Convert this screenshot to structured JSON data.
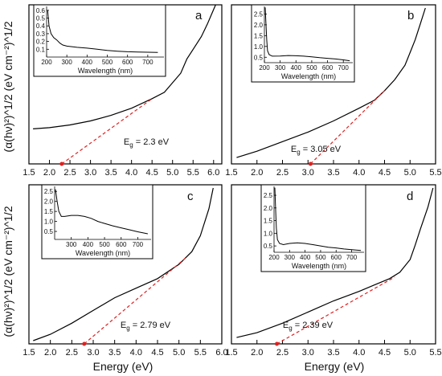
{
  "figure": {
    "y_axis_title_top": "(α(hν)²)^1/2 (eV cm⁻²)^1/2",
    "y_axis_title_bottom": "(α(hν)²)^1/2 (eV cm⁻²)^1/2",
    "x_axis_title_left": "Energy (eV)",
    "x_axis_title_right": "Energy (eV)",
    "colors": {
      "curve": "#000000",
      "fit_line": "#e02020",
      "axes": "#000000"
    }
  },
  "chart_data": [
    {
      "panel": "a",
      "type": "line",
      "xlim": [
        1.5,
        6.2
      ],
      "xticks": [
        1.5,
        2.0,
        2.5,
        3.0,
        3.5,
        4.0,
        4.5,
        5.0,
        5.5,
        6.0
      ],
      "xtick_labels": [
        "1.5",
        "2.0",
        "2.5",
        "3.0",
        "3.5",
        "4.0",
        "4.5",
        "5.0",
        "5.5",
        "6.0"
      ],
      "ylim": [
        0,
        100
      ],
      "series": [
        {
          "x": [
            1.6,
            2.0,
            2.5,
            3.0,
            3.5,
            4.0,
            4.5,
            4.8,
            5.0,
            5.2,
            5.35,
            5.5,
            5.7,
            5.85,
            5.95,
            6.05
          ],
          "y": [
            22,
            22.8,
            24.5,
            27,
            30.5,
            35,
            41,
            45,
            51,
            57,
            66,
            72,
            80,
            88,
            94,
            100
          ]
        }
      ],
      "fit_line": {
        "x": [
          2.3,
          4.5
        ],
        "y": [
          0,
          41
        ]
      },
      "annotation": {
        "base": "E",
        "subscript": "g",
        "text": " = 2.3 eV"
      },
      "inset": {
        "xlabel": "Wavelength (nm)",
        "xlim": [
          200,
          780
        ],
        "xticks": [
          200,
          300,
          400,
          500,
          600,
          700
        ],
        "xtick_labels": [
          "200",
          "300",
          "400",
          "500",
          "600",
          "700"
        ],
        "ylim": [
          0.0,
          0.65
        ],
        "yticks": [
          0.1,
          0.2,
          0.3,
          0.4,
          0.5,
          0.6
        ],
        "ytick_labels": [
          "0.1",
          "0.2",
          "0.3",
          "0.4",
          "0.5",
          "0.6"
        ],
        "x": [
          205,
          212,
          222,
          235,
          250,
          265,
          280,
          300,
          350,
          400,
          450,
          500,
          550,
          600,
          650,
          700,
          750
        ],
        "y": [
          0.6,
          0.4,
          0.3,
          0.25,
          0.22,
          0.18,
          0.155,
          0.14,
          0.125,
          0.115,
          0.1,
          0.085,
          0.075,
          0.068,
          0.064,
          0.062,
          0.06
        ]
      }
    },
    {
      "panel": "b",
      "type": "line",
      "xlim": [
        1.5,
        5.5
      ],
      "xticks": [
        1.5,
        2.0,
        2.5,
        3.0,
        3.5,
        4.0,
        4.5,
        5.0,
        5.5
      ],
      "xtick_labels": [
        "1.5",
        "2.0",
        "2.5",
        "3.0",
        "3.5",
        "4.0",
        "4.5",
        "5.0",
        "5.5"
      ],
      "ylim": [
        0,
        100
      ],
      "series": [
        {
          "x": [
            1.6,
            2.0,
            2.5,
            3.0,
            3.5,
            4.0,
            4.3,
            4.5,
            4.7,
            4.9,
            5.0,
            5.1,
            5.2,
            5.3
          ],
          "y": [
            4,
            8,
            14,
            20,
            27,
            35,
            40,
            46,
            53,
            62,
            70,
            78,
            88,
            98
          ]
        }
      ],
      "fit_line": {
        "x": [
          3.05,
          4.5
        ],
        "y": [
          0,
          46
        ]
      },
      "annotation": {
        "base": "E",
        "subscript": "g",
        "text": " = 3.05 eV"
      },
      "inset": {
        "xlabel": "Wavelength (nm)",
        "xlim": [
          200,
          760
        ],
        "xticks": [
          200,
          300,
          400,
          500,
          600,
          700
        ],
        "xtick_labels": [
          "200",
          "300",
          "400",
          "500",
          "600",
          "700"
        ],
        "ylim": [
          0.25,
          2.85
        ],
        "yticks": [
          0.5,
          1.0,
          1.5,
          2.0,
          2.5
        ],
        "ytick_labels": [
          "0.5",
          "1.0",
          "1.5",
          "2.0",
          "2.5"
        ],
        "x": [
          205,
          210,
          215,
          220,
          230,
          250,
          300,
          350,
          400,
          450,
          500,
          550,
          600,
          650,
          700,
          740
        ],
        "y": [
          2.8,
          2.0,
          1.3,
          0.8,
          0.62,
          0.55,
          0.56,
          0.58,
          0.57,
          0.55,
          0.52,
          0.48,
          0.45,
          0.42,
          0.38,
          0.34
        ]
      }
    },
    {
      "panel": "c",
      "type": "line",
      "xlim": [
        1.5,
        6.0
      ],
      "xticks": [
        1.5,
        2.0,
        2.5,
        3.0,
        3.5,
        4.0,
        4.5,
        5.0,
        5.5,
        6.0
      ],
      "xtick_labels": [
        "1.5",
        "2.0",
        "2.5",
        "3.0",
        "3.5",
        "4.0",
        "4.5",
        "5.0",
        "5.5",
        "6.0"
      ],
      "ylim": [
        0,
        100
      ],
      "series": [
        {
          "x": [
            1.6,
            2.0,
            2.5,
            3.0,
            3.5,
            4.0,
            4.5,
            5.0,
            5.3,
            5.5,
            5.7,
            5.8
          ],
          "y": [
            2,
            6,
            13,
            21,
            29,
            35,
            41,
            50,
            58,
            68,
            85,
            98
          ]
        }
      ],
      "fit_line": {
        "x": [
          2.79,
          5.2
        ],
        "y": [
          0,
          55
        ]
      },
      "annotation": {
        "base": "E",
        "subscript": "g",
        "text": " = 2.79 eV"
      },
      "inset": {
        "xlabel": "Wavelength (nm)",
        "xlim": [
          200,
          780
        ],
        "xticks": [
          300,
          400,
          500,
          600,
          700
        ],
        "xtick_labels": [
          "300",
          "400",
          "500",
          "600",
          "700"
        ],
        "ylim": [
          0.1,
          2.75
        ],
        "yticks": [
          0.5,
          1.0,
          1.5,
          2.0,
          2.5
        ],
        "ytick_labels": [
          "0.5",
          "1.0",
          "1.5",
          "2.0",
          "2.5"
        ],
        "x": [
          205,
          215,
          225,
          240,
          260,
          300,
          340,
          380,
          420,
          460,
          500,
          550,
          600,
          650,
          700,
          760
        ],
        "y": [
          2.6,
          2.0,
          1.5,
          1.25,
          1.25,
          1.3,
          1.3,
          1.25,
          1.15,
          1.0,
          0.9,
          0.78,
          0.68,
          0.58,
          0.48,
          0.38
        ]
      }
    },
    {
      "panel": "d",
      "type": "line",
      "xlim": [
        1.5,
        5.5
      ],
      "xticks": [
        1.5,
        2.0,
        2.5,
        3.0,
        3.5,
        4.0,
        4.5,
        5.0,
        5.5
      ],
      "xtick_labels": [
        "1.5",
        "2.0",
        "2.5",
        "3.0",
        "3.5",
        "4.0",
        "4.5",
        "5.0",
        "5.5"
      ],
      "ylim": [
        0,
        100
      ],
      "series": [
        {
          "x": [
            1.6,
            2.0,
            2.5,
            3.0,
            3.5,
            4.0,
            4.3,
            4.6,
            4.8,
            5.0,
            5.1,
            5.2,
            5.35,
            5.45
          ],
          "y": [
            4,
            7,
            13,
            20,
            27,
            33,
            37,
            41,
            45,
            53,
            62,
            72,
            86,
            98
          ]
        }
      ],
      "fit_line": {
        "x": [
          2.39,
          4.7
        ],
        "y": [
          0,
          42
        ]
      },
      "annotation": {
        "base": "E",
        "subscript": "g",
        "text": " = 2.39 eV"
      },
      "inset": {
        "xlabel": "Wavelength (nm)",
        "xlim": [
          200,
          780
        ],
        "xticks": [
          200,
          300,
          400,
          500,
          600,
          700
        ],
        "xtick_labels": [
          "200",
          "300",
          "400",
          "500",
          "600",
          "700"
        ],
        "ylim": [
          0.25,
          2.85
        ],
        "yticks": [
          0.5,
          1.0,
          1.5,
          2.0,
          2.5
        ],
        "ytick_labels": [
          "0.5",
          "1.0",
          "1.5",
          "2.0",
          "2.5"
        ],
        "x": [
          205,
          210,
          215,
          222,
          235,
          260,
          300,
          350,
          400,
          450,
          500,
          550,
          600,
          650,
          700,
          760
        ],
        "y": [
          2.8,
          2.0,
          1.2,
          0.75,
          0.6,
          0.55,
          0.6,
          0.62,
          0.6,
          0.55,
          0.5,
          0.45,
          0.42,
          0.38,
          0.35,
          0.32
        ]
      }
    }
  ]
}
